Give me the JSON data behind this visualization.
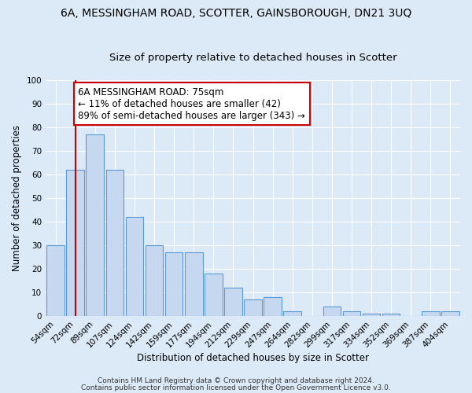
{
  "title": "6A, MESSINGHAM ROAD, SCOTTER, GAINSBOROUGH, DN21 3UQ",
  "subtitle": "Size of property relative to detached houses in Scotter",
  "xlabel": "Distribution of detached houses by size in Scotter",
  "ylabel": "Number of detached properties",
  "bar_color": "#c5d8f0",
  "bar_edge_color": "#5b9bd5",
  "categories": [
    "54sqm",
    "72sqm",
    "89sqm",
    "107sqm",
    "124sqm",
    "142sqm",
    "159sqm",
    "177sqm",
    "194sqm",
    "212sqm",
    "229sqm",
    "247sqm",
    "264sqm",
    "282sqm",
    "299sqm",
    "317sqm",
    "334sqm",
    "352sqm",
    "369sqm",
    "387sqm",
    "404sqm"
  ],
  "values": [
    30,
    62,
    77,
    62,
    42,
    30,
    27,
    27,
    18,
    12,
    7,
    8,
    2,
    0,
    4,
    2,
    1,
    1,
    0,
    2,
    2
  ],
  "ylim": [
    0,
    100
  ],
  "yticks": [
    0,
    10,
    20,
    30,
    40,
    50,
    60,
    70,
    80,
    90,
    100
  ],
  "vline_x": 1,
  "vline_color": "#cc0000",
  "annotation_text": "6A MESSINGHAM ROAD: 75sqm\n← 11% of detached houses are smaller (42)\n89% of semi-detached houses are larger (343) →",
  "annotation_box_color": "#ffffff",
  "annotation_box_edge_color": "#cc0000",
  "footer_line1": "Contains HM Land Registry data © Crown copyright and database right 2024.",
  "footer_line2": "Contains public sector information licensed under the Open Government Licence v3.0.",
  "background_color": "#dce9f7",
  "plot_bg_color": "#dce9f7",
  "grid_color": "#ffffff",
  "title_fontsize": 10,
  "subtitle_fontsize": 9.5,
  "axis_label_fontsize": 8.5,
  "tick_fontsize": 7.5,
  "annotation_fontsize": 8.5,
  "footer_fontsize": 6.5
}
